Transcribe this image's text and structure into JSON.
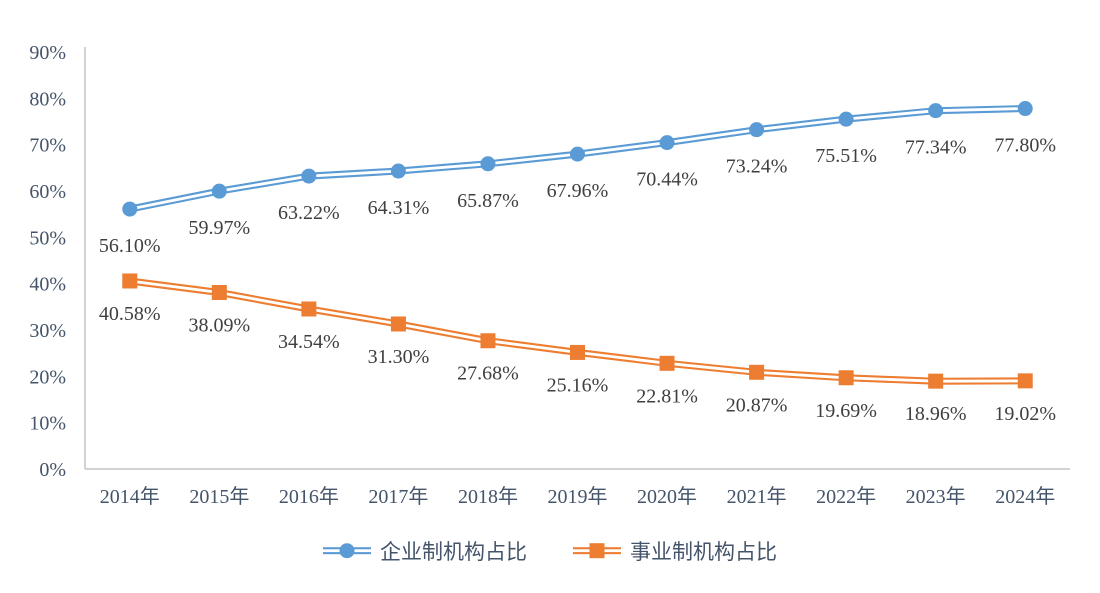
{
  "chart_data": {
    "type": "line",
    "title": "",
    "categories": [
      "2014年",
      "2015年",
      "2016年",
      "2017年",
      "2018年",
      "2019年",
      "2020年",
      "2021年",
      "2022年",
      "2023年",
      "2024年"
    ],
    "series": [
      {
        "name": "企业制机构占比",
        "color": "#5B9BD5",
        "marker": "circle",
        "line_style": "double",
        "values": [
          56.1,
          59.97,
          63.22,
          64.31,
          65.87,
          67.96,
          70.44,
          73.24,
          75.51,
          77.34,
          77.8
        ],
        "labels": [
          "56.10%",
          "59.97%",
          "63.22%",
          "64.31%",
          "65.87%",
          "67.96%",
          "70.44%",
          "73.24%",
          "75.51%",
          "77.34%",
          "77.80%"
        ]
      },
      {
        "name": "事业制机构占比",
        "color": "#ED7D31",
        "marker": "square",
        "line_style": "double",
        "values": [
          40.58,
          38.09,
          34.54,
          31.3,
          27.68,
          25.16,
          22.81,
          20.87,
          19.69,
          18.96,
          19.02
        ],
        "labels": [
          "40.58%",
          "38.09%",
          "34.54%",
          "31.30%",
          "27.68%",
          "25.16%",
          "22.81%",
          "20.87%",
          "19.69%",
          "18.96%",
          "19.02%"
        ]
      }
    ],
    "xlabel": "",
    "ylabel": "",
    "ylim": [
      0,
      90
    ],
    "yticks": [
      "0%",
      "10%",
      "20%",
      "30%",
      "40%",
      "50%",
      "60%",
      "70%",
      "80%",
      "90%"
    ],
    "grid": false,
    "legend_position": "bottom",
    "colors": {
      "axis_line": "#D2D2D2",
      "tick_text": "#44546A",
      "data_label_text": "#3F3F3F",
      "background": "#FFFFFF"
    }
  }
}
